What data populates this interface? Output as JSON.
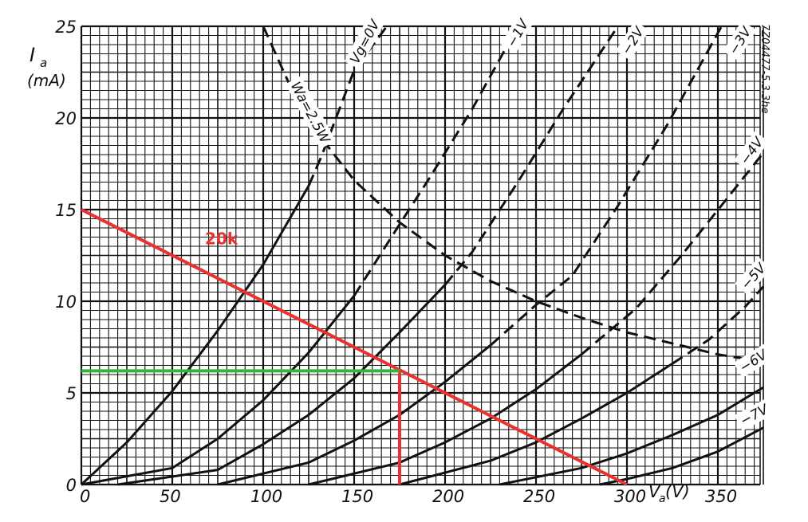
{
  "chart_data": {
    "type": "line",
    "title": "",
    "xlabel": "Va (V)",
    "ylabel": "Ia (mA)",
    "y_axis_label_lines": [
      "I",
      "a",
      "(mA)"
    ],
    "x_axis_label_parts": [
      "V",
      "a",
      " (V)"
    ],
    "xlim": [
      0,
      375
    ],
    "ylim": [
      0,
      25
    ],
    "x_ticks": [
      0,
      50,
      100,
      150,
      200,
      250,
      300,
      350
    ],
    "x_tick_labels": [
      "0",
      "50",
      "100",
      "150",
      "200",
      "250",
      "300",
      "350"
    ],
    "y_ticks": [
      0,
      5,
      10,
      15,
      20,
      25
    ],
    "y_tick_labels": [
      "0",
      "5",
      "10",
      "15",
      "20",
      "25"
    ],
    "grid": true,
    "side_text": "7Z04477-5.3.3he",
    "series": [
      {
        "name": "Vg=0V",
        "label_text": "Vg=0V",
        "label_pos": [
          152,
          22.9
        ],
        "points": [
          [
            0,
            0
          ],
          [
            25,
            2.3
          ],
          [
            50,
            5.1
          ],
          [
            75,
            8.4
          ],
          [
            100,
            12.0
          ],
          [
            125,
            16.3
          ],
          [
            132,
            17.9
          ],
          [
            150,
            22.6
          ],
          [
            168,
            25
          ]
        ]
      },
      {
        "name": "-1V",
        "label_text": "−1V",
        "label_pos": [
          238,
          23.8
        ],
        "points": [
          [
            0,
            0
          ],
          [
            50,
            0.9
          ],
          [
            75,
            2.5
          ],
          [
            100,
            4.6
          ],
          [
            125,
            7.2
          ],
          [
            150,
            10.3
          ],
          [
            175,
            14.2
          ],
          [
            190,
            16.5
          ],
          [
            215,
            20.5
          ],
          [
            240,
            25
          ]
        ]
      },
      {
        "name": "-2V",
        "label_text": "−2V",
        "label_pos": [
          301,
          23.4
        ],
        "points": [
          [
            20,
            0
          ],
          [
            75,
            0.8
          ],
          [
            100,
            2.2
          ],
          [
            125,
            3.8
          ],
          [
            150,
            5.8
          ],
          [
            175,
            8.3
          ],
          [
            200,
            10.9
          ],
          [
            215,
            12.7
          ],
          [
            240,
            16.5
          ],
          [
            265,
            20.5
          ],
          [
            295,
            25
          ]
        ]
      },
      {
        "name": "-3V",
        "label_text": "−3V",
        "label_pos": [
          360,
          23.4
        ],
        "points": [
          [
            75,
            0
          ],
          [
            125,
            1.2
          ],
          [
            150,
            2.4
          ],
          [
            175,
            3.8
          ],
          [
            200,
            5.6
          ],
          [
            225,
            7.6
          ],
          [
            250,
            9.8
          ],
          [
            270,
            11.4
          ],
          [
            295,
            15.2
          ],
          [
            322,
            19.6
          ],
          [
            352,
            25
          ]
        ]
      },
      {
        "name": "-4V",
        "label_text": "−4V",
        "label_pos": [
          366,
          17.4
        ],
        "points": [
          [
            125,
            0
          ],
          [
            175,
            1.2
          ],
          [
            200,
            2.3
          ],
          [
            225,
            3.6
          ],
          [
            250,
            5.2
          ],
          [
            275,
            7.1
          ],
          [
            305,
            9.6
          ],
          [
            330,
            12.5
          ],
          [
            355,
            15.6
          ],
          [
            375,
            18.1
          ]
        ]
      },
      {
        "name": "-5V",
        "label_text": "−5V",
        "label_pos": [
          366,
          10.6
        ],
        "points": [
          [
            175,
            0
          ],
          [
            225,
            1.3
          ],
          [
            250,
            2.3
          ],
          [
            275,
            3.6
          ],
          [
            300,
            5.0
          ],
          [
            325,
            6.6
          ],
          [
            345,
            7.9
          ],
          [
            365,
            9.7
          ],
          [
            375,
            10.8
          ]
        ]
      },
      {
        "name": "-6V",
        "label_text": "−6V",
        "label_pos": [
          364,
          6.1
        ],
        "points": [
          [
            230,
            0
          ],
          [
            275,
            0.9
          ],
          [
            300,
            1.7
          ],
          [
            325,
            2.7
          ],
          [
            350,
            3.8
          ],
          [
            375,
            5.3
          ]
        ]
      },
      {
        "name": "-7V",
        "label_text": "−7V",
        "label_pos": [
          364,
          3.2
        ],
        "points": [
          [
            285,
            0
          ],
          [
            300,
            0.3
          ],
          [
            325,
            0.9
          ],
          [
            350,
            1.8
          ],
          [
            375,
            3.1
          ]
        ]
      }
    ],
    "max_dissipation": {
      "name": "Wa=2.5W",
      "label_text": "Wa=2.5W",
      "label_pos": [
        115,
        21.8
      ],
      "points": [
        [
          100,
          25
        ],
        [
          115,
          21.7
        ],
        [
          132,
          18.9
        ],
        [
          150,
          16.6
        ],
        [
          175,
          14.3
        ],
        [
          200,
          12.5
        ],
        [
          225,
          11.1
        ],
        [
          250,
          10.0
        ],
        [
          275,
          9.1
        ],
        [
          300,
          8.3
        ],
        [
          325,
          7.7
        ],
        [
          350,
          7.1
        ],
        [
          375,
          6.7
        ]
      ]
    },
    "load_line": {
      "name": "20k",
      "label_text": "20k",
      "label_pos": [
        68,
        13.1
      ],
      "color": "#e8322f",
      "points": [
        [
          0,
          15
        ],
        [
          300,
          0
        ]
      ]
    },
    "operating_point": {
      "x": 175,
      "y": 6.2,
      "vertical_color": "#e8322f",
      "horizontal_color": "#2db83a"
    }
  }
}
